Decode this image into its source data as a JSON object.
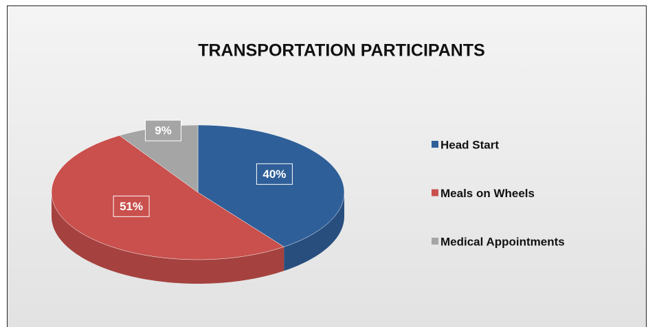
{
  "chart_data": {
    "type": "pie",
    "title": "TRANSPORTATION PARTICIPANTS",
    "categories": [
      "Head Start",
      "Meals on Wheels",
      "Medical Appointments"
    ],
    "values": [
      40,
      51,
      9
    ],
    "value_labels": [
      "40%",
      "51%",
      "9%"
    ],
    "colors": [
      "#2f5f98",
      "#c9504d",
      "#a5a5a5"
    ],
    "legend": "right"
  }
}
